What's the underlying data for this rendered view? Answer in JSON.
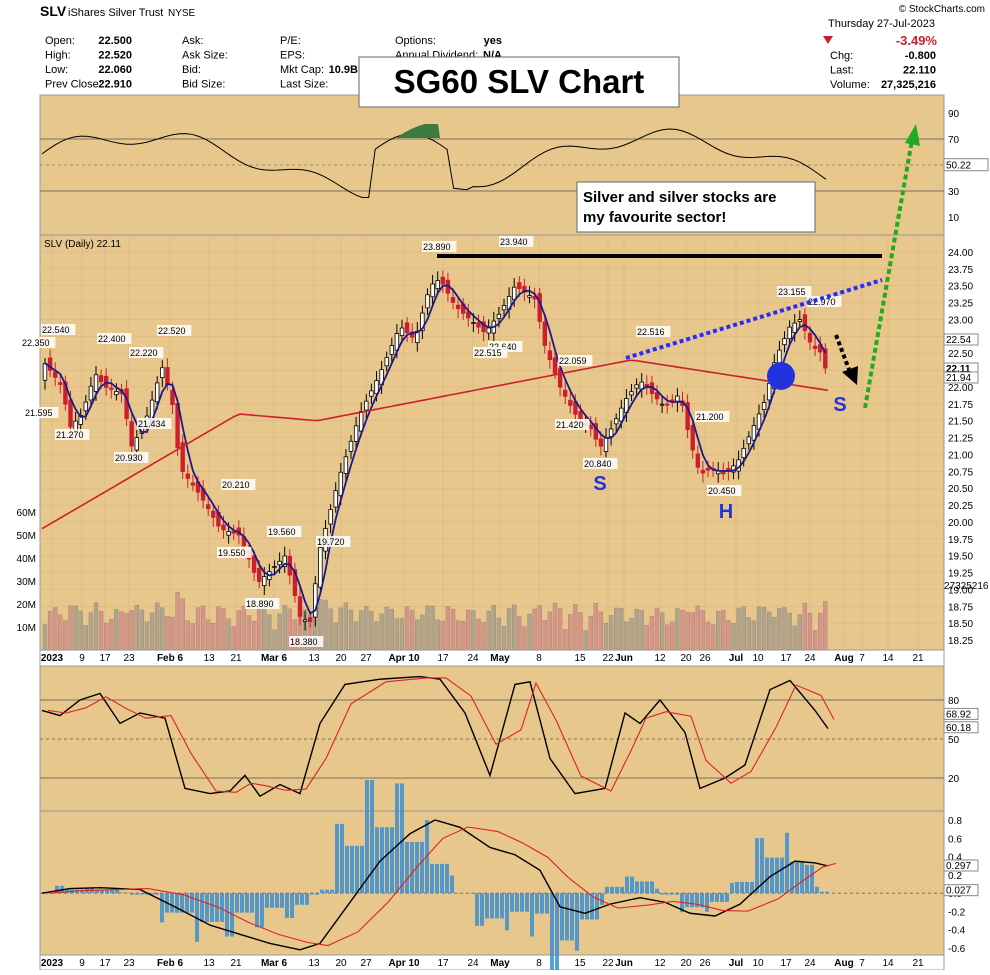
{
  "header": {
    "symbol": "SLV",
    "name": "iShares Silver Trust",
    "exchange": "NYSE",
    "source": "© StockCharts.com",
    "date": "Thursday  27-Jul-2023",
    "change_pct": "-3.49%",
    "fields_left": [
      {
        "label": "Open:",
        "value": "22.500"
      },
      {
        "label": "High:",
        "value": "22.520"
      },
      {
        "label": "Low:",
        "value": "22.060"
      },
      {
        "label": "Prev Close:",
        "value": "22.910"
      }
    ],
    "fields_mid": [
      {
        "label": "Ask:",
        "value": ""
      },
      {
        "label": "Ask Size:",
        "value": ""
      },
      {
        "label": "Bid:",
        "value": ""
      },
      {
        "label": "Bid Size:",
        "value": ""
      }
    ],
    "fields_mid2": [
      {
        "label": "P/E:",
        "value": ""
      },
      {
        "label": "EPS:",
        "value": ""
      },
      {
        "label": "Mkt Cap:",
        "value": "10.9B"
      },
      {
        "label": "Last Size:",
        "value": ""
      }
    ],
    "fields_mid3": [
      {
        "label": "Options:",
        "value": "yes"
      },
      {
        "label": "Annual Dividend:",
        "value": "N/A"
      }
    ],
    "fields_right": [
      {
        "label": "Chg:",
        "value": "-0.800"
      },
      {
        "label": "Last:",
        "value": "22.110"
      },
      {
        "label": "Volume:",
        "value": "27,325,216"
      }
    ]
  },
  "annotations": {
    "title_box": "SG60 SLV Chart",
    "comment_line1": "Silver and silver stocks are",
    "comment_line2": "my favourite sector!",
    "pattern_labels": [
      "S",
      "H",
      "S"
    ]
  },
  "colors": {
    "bg": "#e8c78d",
    "up": "#000000",
    "down": "#cc1f2e",
    "ma_short": "#1a1a8c",
    "ma_long": "#cc1f2e",
    "neckline": "#2a2aff",
    "target_arrow": "#22aa22",
    "hs_marker": "#2233dd"
  },
  "chart_data": [
    {
      "type": "line",
      "panel": "rsi-top",
      "x": [
        "Jan 3",
        "Feb 1",
        "Feb 15",
        "Mar 1",
        "Mar 15",
        "Apr 1",
        "Apr 13",
        "May 1",
        "May 15",
        "Jun 1",
        "Jun 15",
        "Jul 1",
        "Jul 15",
        "Jul 27"
      ],
      "values": [
        50,
        60,
        35,
        45,
        30,
        62,
        78,
        70,
        42,
        40,
        45,
        35,
        62,
        50.22
      ],
      "yticks": [
        90,
        70,
        50,
        30,
        10
      ],
      "last_label": "50.22"
    },
    {
      "type": "candlestick",
      "panel": "price",
      "title": "SLV (Daily) 22.11",
      "ylim": [
        18.25,
        24.0
      ],
      "yticks": [
        "24.00",
        "23.75",
        "23.50",
        "23.25",
        "23.00",
        "22.75",
        "22.50",
        "22.25",
        "22.00",
        "21.75",
        "21.50",
        "21.25",
        "21.00",
        "20.75",
        "20.50",
        "20.25",
        "20.00",
        "19.75",
        "19.50",
        "19.25",
        "19.00",
        "18.75",
        "18.50",
        "18.25"
      ],
      "x_ticks": [
        "2023",
        "9",
        "17",
        "23",
        "Feb 6",
        "13",
        "21",
        "Mar 6",
        "13",
        "20",
        "27",
        "Apr 10",
        "17",
        "24",
        "May",
        "8",
        "15",
        "22",
        "Jun",
        "12",
        "20",
        "26",
        "Jul",
        "10",
        "17",
        "24",
        "Aug",
        "7",
        "14",
        "21"
      ],
      "price_labels": [
        "22.350",
        "22.540",
        "22.400",
        "22.220",
        "22.520",
        "21.595",
        "21.270",
        "21.434",
        "20.930",
        "20.210",
        "19.560",
        "19.550",
        "19.720",
        "18.890",
        "18.380",
        "23.890",
        "23.940",
        "22.640",
        "22.515",
        "22.059",
        "21.420",
        "20.840",
        "22.516",
        "21.200",
        "20.450",
        "23.155",
        "22.970"
      ],
      "right_labels": [
        "22.54",
        "22.11",
        "21.94"
      ],
      "resistance": 23.94,
      "volume_ticks": [
        "60M",
        "50M",
        "40M",
        "30M",
        "20M",
        "10M"
      ],
      "volume_last": "27325216"
    },
    {
      "type": "line",
      "panel": "stochastic",
      "yticks": [
        80,
        50,
        20
      ],
      "last_labels": [
        "68.92",
        "60.18"
      ]
    },
    {
      "type": "line",
      "panel": "macd",
      "yticks": [
        "0.8",
        "0.6",
        "0.4",
        "0.2",
        "0.0",
        "-0.2",
        "-0.4",
        "-0.6"
      ],
      "last_labels": [
        "0.297",
        "0.027"
      ],
      "x_ticks": [
        "2023",
        "9",
        "17",
        "23",
        "Feb 6",
        "13",
        "21",
        "Mar 6",
        "13",
        "20",
        "27",
        "Apr 10",
        "17",
        "24",
        "May",
        "8",
        "15",
        "22",
        "Jun",
        "12",
        "20",
        "26",
        "Jul",
        "10",
        "17",
        "24",
        "Aug",
        "7",
        "14",
        "21"
      ]
    }
  ]
}
